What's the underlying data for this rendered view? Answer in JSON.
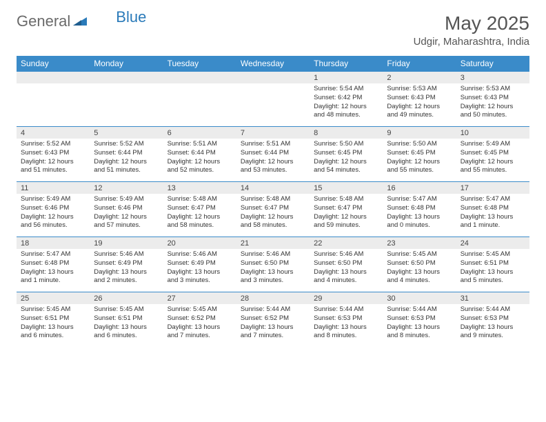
{
  "logo": {
    "text1": "General",
    "text2": "Blue"
  },
  "title": "May 2025",
  "location": "Udgir, Maharashtra, India",
  "colors": {
    "header_bg": "#3a8bc9",
    "header_text": "#ffffff",
    "daynum_bg": "#ececec",
    "border": "#3a8bc9",
    "body_text": "#333333",
    "title_text": "#555555",
    "logo_gray": "#6a6a6a",
    "logo_blue": "#2a7ab9"
  },
  "day_headers": [
    "Sunday",
    "Monday",
    "Tuesday",
    "Wednesday",
    "Thursday",
    "Friday",
    "Saturday"
  ],
  "weeks": [
    [
      {
        "empty": true
      },
      {
        "empty": true
      },
      {
        "empty": true
      },
      {
        "empty": true
      },
      {
        "num": "1",
        "sunrise": "Sunrise: 5:54 AM",
        "sunset": "Sunset: 6:42 PM",
        "daylight1": "Daylight: 12 hours",
        "daylight2": "and 48 minutes."
      },
      {
        "num": "2",
        "sunrise": "Sunrise: 5:53 AM",
        "sunset": "Sunset: 6:43 PM",
        "daylight1": "Daylight: 12 hours",
        "daylight2": "and 49 minutes."
      },
      {
        "num": "3",
        "sunrise": "Sunrise: 5:53 AM",
        "sunset": "Sunset: 6:43 PM",
        "daylight1": "Daylight: 12 hours",
        "daylight2": "and 50 minutes."
      }
    ],
    [
      {
        "num": "4",
        "sunrise": "Sunrise: 5:52 AM",
        "sunset": "Sunset: 6:43 PM",
        "daylight1": "Daylight: 12 hours",
        "daylight2": "and 51 minutes."
      },
      {
        "num": "5",
        "sunrise": "Sunrise: 5:52 AM",
        "sunset": "Sunset: 6:44 PM",
        "daylight1": "Daylight: 12 hours",
        "daylight2": "and 51 minutes."
      },
      {
        "num": "6",
        "sunrise": "Sunrise: 5:51 AM",
        "sunset": "Sunset: 6:44 PM",
        "daylight1": "Daylight: 12 hours",
        "daylight2": "and 52 minutes."
      },
      {
        "num": "7",
        "sunrise": "Sunrise: 5:51 AM",
        "sunset": "Sunset: 6:44 PM",
        "daylight1": "Daylight: 12 hours",
        "daylight2": "and 53 minutes."
      },
      {
        "num": "8",
        "sunrise": "Sunrise: 5:50 AM",
        "sunset": "Sunset: 6:45 PM",
        "daylight1": "Daylight: 12 hours",
        "daylight2": "and 54 minutes."
      },
      {
        "num": "9",
        "sunrise": "Sunrise: 5:50 AM",
        "sunset": "Sunset: 6:45 PM",
        "daylight1": "Daylight: 12 hours",
        "daylight2": "and 55 minutes."
      },
      {
        "num": "10",
        "sunrise": "Sunrise: 5:49 AM",
        "sunset": "Sunset: 6:45 PM",
        "daylight1": "Daylight: 12 hours",
        "daylight2": "and 55 minutes."
      }
    ],
    [
      {
        "num": "11",
        "sunrise": "Sunrise: 5:49 AM",
        "sunset": "Sunset: 6:46 PM",
        "daylight1": "Daylight: 12 hours",
        "daylight2": "and 56 minutes."
      },
      {
        "num": "12",
        "sunrise": "Sunrise: 5:49 AM",
        "sunset": "Sunset: 6:46 PM",
        "daylight1": "Daylight: 12 hours",
        "daylight2": "and 57 minutes."
      },
      {
        "num": "13",
        "sunrise": "Sunrise: 5:48 AM",
        "sunset": "Sunset: 6:47 PM",
        "daylight1": "Daylight: 12 hours",
        "daylight2": "and 58 minutes."
      },
      {
        "num": "14",
        "sunrise": "Sunrise: 5:48 AM",
        "sunset": "Sunset: 6:47 PM",
        "daylight1": "Daylight: 12 hours",
        "daylight2": "and 58 minutes."
      },
      {
        "num": "15",
        "sunrise": "Sunrise: 5:48 AM",
        "sunset": "Sunset: 6:47 PM",
        "daylight1": "Daylight: 12 hours",
        "daylight2": "and 59 minutes."
      },
      {
        "num": "16",
        "sunrise": "Sunrise: 5:47 AM",
        "sunset": "Sunset: 6:48 PM",
        "daylight1": "Daylight: 13 hours",
        "daylight2": "and 0 minutes."
      },
      {
        "num": "17",
        "sunrise": "Sunrise: 5:47 AM",
        "sunset": "Sunset: 6:48 PM",
        "daylight1": "Daylight: 13 hours",
        "daylight2": "and 1 minute."
      }
    ],
    [
      {
        "num": "18",
        "sunrise": "Sunrise: 5:47 AM",
        "sunset": "Sunset: 6:48 PM",
        "daylight1": "Daylight: 13 hours",
        "daylight2": "and 1 minute."
      },
      {
        "num": "19",
        "sunrise": "Sunrise: 5:46 AM",
        "sunset": "Sunset: 6:49 PM",
        "daylight1": "Daylight: 13 hours",
        "daylight2": "and 2 minutes."
      },
      {
        "num": "20",
        "sunrise": "Sunrise: 5:46 AM",
        "sunset": "Sunset: 6:49 PM",
        "daylight1": "Daylight: 13 hours",
        "daylight2": "and 3 minutes."
      },
      {
        "num": "21",
        "sunrise": "Sunrise: 5:46 AM",
        "sunset": "Sunset: 6:50 PM",
        "daylight1": "Daylight: 13 hours",
        "daylight2": "and 3 minutes."
      },
      {
        "num": "22",
        "sunrise": "Sunrise: 5:46 AM",
        "sunset": "Sunset: 6:50 PM",
        "daylight1": "Daylight: 13 hours",
        "daylight2": "and 4 minutes."
      },
      {
        "num": "23",
        "sunrise": "Sunrise: 5:45 AM",
        "sunset": "Sunset: 6:50 PM",
        "daylight1": "Daylight: 13 hours",
        "daylight2": "and 4 minutes."
      },
      {
        "num": "24",
        "sunrise": "Sunrise: 5:45 AM",
        "sunset": "Sunset: 6:51 PM",
        "daylight1": "Daylight: 13 hours",
        "daylight2": "and 5 minutes."
      }
    ],
    [
      {
        "num": "25",
        "sunrise": "Sunrise: 5:45 AM",
        "sunset": "Sunset: 6:51 PM",
        "daylight1": "Daylight: 13 hours",
        "daylight2": "and 6 minutes."
      },
      {
        "num": "26",
        "sunrise": "Sunrise: 5:45 AM",
        "sunset": "Sunset: 6:51 PM",
        "daylight1": "Daylight: 13 hours",
        "daylight2": "and 6 minutes."
      },
      {
        "num": "27",
        "sunrise": "Sunrise: 5:45 AM",
        "sunset": "Sunset: 6:52 PM",
        "daylight1": "Daylight: 13 hours",
        "daylight2": "and 7 minutes."
      },
      {
        "num": "28",
        "sunrise": "Sunrise: 5:44 AM",
        "sunset": "Sunset: 6:52 PM",
        "daylight1": "Daylight: 13 hours",
        "daylight2": "and 7 minutes."
      },
      {
        "num": "29",
        "sunrise": "Sunrise: 5:44 AM",
        "sunset": "Sunset: 6:53 PM",
        "daylight1": "Daylight: 13 hours",
        "daylight2": "and 8 minutes."
      },
      {
        "num": "30",
        "sunrise": "Sunrise: 5:44 AM",
        "sunset": "Sunset: 6:53 PM",
        "daylight1": "Daylight: 13 hours",
        "daylight2": "and 8 minutes."
      },
      {
        "num": "31",
        "sunrise": "Sunrise: 5:44 AM",
        "sunset": "Sunset: 6:53 PM",
        "daylight1": "Daylight: 13 hours",
        "daylight2": "and 9 minutes."
      }
    ]
  ]
}
